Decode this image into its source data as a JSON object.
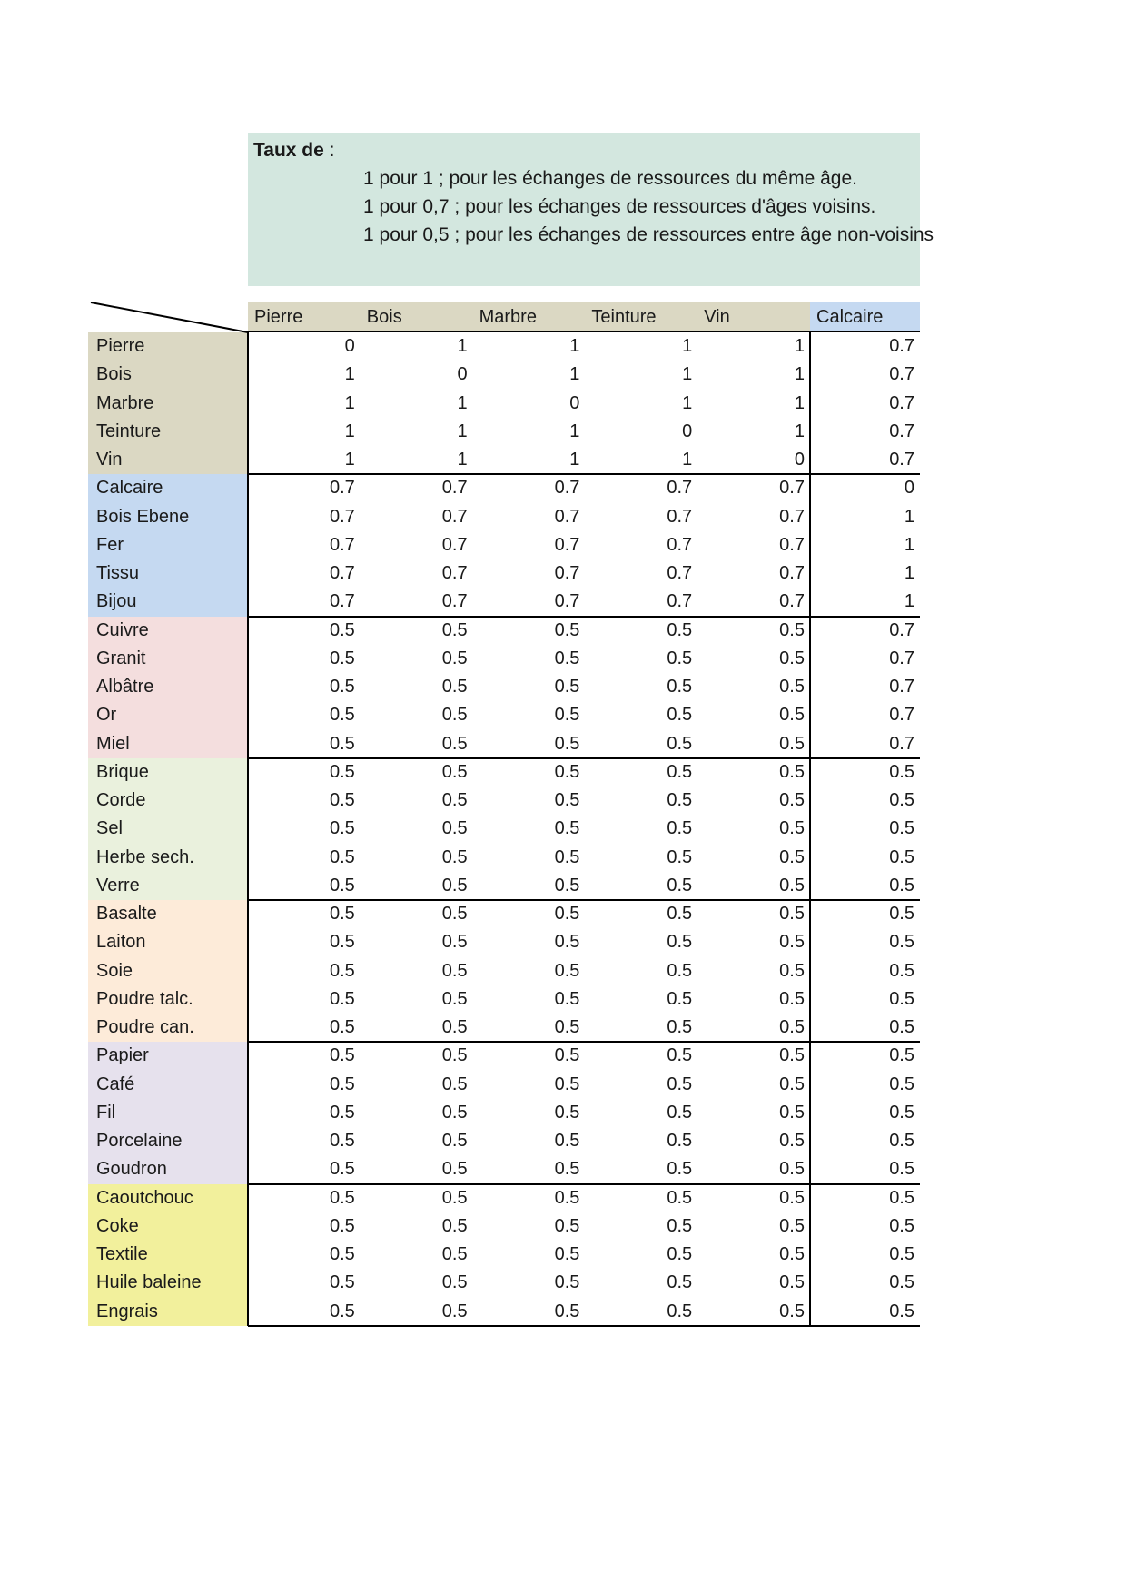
{
  "note": {
    "title": "Taux de",
    "title_suffix": " :",
    "bg_color": "#d3e7df",
    "lines": [
      "1 pour 1 ; pour les échanges de ressources du même âge.",
      "1 pour 0,7 ; pour les échanges de ressources d'âges voisins.",
      "1 pour 0,5 ; pour les échanges de ressources entre âge non-voisins"
    ]
  },
  "table": {
    "border_color": "#000000",
    "text_color": "#1a1a1a",
    "columns": [
      {
        "label": "Pierre",
        "fill": "#dbd8c3"
      },
      {
        "label": "Bois",
        "fill": "#dbd8c3"
      },
      {
        "label": "Marbre",
        "fill": "#dbd8c3"
      },
      {
        "label": "Teinture",
        "fill": "#dbd8c3"
      },
      {
        "label": "Vin",
        "fill": "#dbd8c3"
      },
      {
        "label": "Calcaire",
        "fill": "#c5d9f1"
      }
    ],
    "groups": [
      {
        "color": "#dbd8c3",
        "rows": [
          {
            "label": "Pierre",
            "values": [
              "0",
              "1",
              "1",
              "1",
              "1",
              "0.7"
            ]
          },
          {
            "label": "Bois",
            "values": [
              "1",
              "0",
              "1",
              "1",
              "1",
              "0.7"
            ]
          },
          {
            "label": "Marbre",
            "values": [
              "1",
              "1",
              "0",
              "1",
              "1",
              "0.7"
            ]
          },
          {
            "label": "Teinture",
            "values": [
              "1",
              "1",
              "1",
              "0",
              "1",
              "0.7"
            ]
          },
          {
            "label": "Vin",
            "values": [
              "1",
              "1",
              "1",
              "1",
              "0",
              "0.7"
            ]
          }
        ]
      },
      {
        "color": "#c5d9f1",
        "rows": [
          {
            "label": "Calcaire",
            "values": [
              "0.7",
              "0.7",
              "0.7",
              "0.7",
              "0.7",
              "0"
            ]
          },
          {
            "label": "Bois Ebene",
            "values": [
              "0.7",
              "0.7",
              "0.7",
              "0.7",
              "0.7",
              "1"
            ]
          },
          {
            "label": "Fer",
            "values": [
              "0.7",
              "0.7",
              "0.7",
              "0.7",
              "0.7",
              "1"
            ]
          },
          {
            "label": "Tissu",
            "values": [
              "0.7",
              "0.7",
              "0.7",
              "0.7",
              "0.7",
              "1"
            ]
          },
          {
            "label": "Bijou",
            "values": [
              "0.7",
              "0.7",
              "0.7",
              "0.7",
              "0.7",
              "1"
            ]
          }
        ]
      },
      {
        "color": "#f4dede",
        "rows": [
          {
            "label": "Cuivre",
            "values": [
              "0.5",
              "0.5",
              "0.5",
              "0.5",
              "0.5",
              "0.7"
            ]
          },
          {
            "label": "Granit",
            "values": [
              "0.5",
              "0.5",
              "0.5",
              "0.5",
              "0.5",
              "0.7"
            ]
          },
          {
            "label": "Albâtre",
            "values": [
              "0.5",
              "0.5",
              "0.5",
              "0.5",
              "0.5",
              "0.7"
            ]
          },
          {
            "label": "Or",
            "values": [
              "0.5",
              "0.5",
              "0.5",
              "0.5",
              "0.5",
              "0.7"
            ]
          },
          {
            "label": "Miel",
            "values": [
              "0.5",
              "0.5",
              "0.5",
              "0.5",
              "0.5",
              "0.7"
            ]
          }
        ]
      },
      {
        "color": "#eaf1dd",
        "rows": [
          {
            "label": "Brique",
            "values": [
              "0.5",
              "0.5",
              "0.5",
              "0.5",
              "0.5",
              "0.5"
            ]
          },
          {
            "label": "Corde",
            "values": [
              "0.5",
              "0.5",
              "0.5",
              "0.5",
              "0.5",
              "0.5"
            ]
          },
          {
            "label": "Sel",
            "values": [
              "0.5",
              "0.5",
              "0.5",
              "0.5",
              "0.5",
              "0.5"
            ]
          },
          {
            "label": "Herbe sech.",
            "values": [
              "0.5",
              "0.5",
              "0.5",
              "0.5",
              "0.5",
              "0.5"
            ]
          },
          {
            "label": "Verre",
            "values": [
              "0.5",
              "0.5",
              "0.5",
              "0.5",
              "0.5",
              "0.5"
            ]
          }
        ]
      },
      {
        "color": "#fdebd9",
        "rows": [
          {
            "label": "Basalte",
            "values": [
              "0.5",
              "0.5",
              "0.5",
              "0.5",
              "0.5",
              "0.5"
            ]
          },
          {
            "label": "Laiton",
            "values": [
              "0.5",
              "0.5",
              "0.5",
              "0.5",
              "0.5",
              "0.5"
            ]
          },
          {
            "label": "Soie",
            "values": [
              "0.5",
              "0.5",
              "0.5",
              "0.5",
              "0.5",
              "0.5"
            ]
          },
          {
            "label": "Poudre talc.",
            "values": [
              "0.5",
              "0.5",
              "0.5",
              "0.5",
              "0.5",
              "0.5"
            ]
          },
          {
            "label": "Poudre can.",
            "values": [
              "0.5",
              "0.5",
              "0.5",
              "0.5",
              "0.5",
              "0.5"
            ]
          }
        ]
      },
      {
        "color": "#e6e1ed",
        "rows": [
          {
            "label": "Papier",
            "values": [
              "0.5",
              "0.5",
              "0.5",
              "0.5",
              "0.5",
              "0.5"
            ]
          },
          {
            "label": "Café",
            "values": [
              "0.5",
              "0.5",
              "0.5",
              "0.5",
              "0.5",
              "0.5"
            ]
          },
          {
            "label": "Fil",
            "values": [
              "0.5",
              "0.5",
              "0.5",
              "0.5",
              "0.5",
              "0.5"
            ]
          },
          {
            "label": "Porcelaine",
            "values": [
              "0.5",
              "0.5",
              "0.5",
              "0.5",
              "0.5",
              "0.5"
            ]
          },
          {
            "label": "Goudron",
            "values": [
              "0.5",
              "0.5",
              "0.5",
              "0.5",
              "0.5",
              "0.5"
            ]
          }
        ]
      },
      {
        "color": "#f2f09c",
        "rows": [
          {
            "label": "Caoutchouc",
            "values": [
              "0.5",
              "0.5",
              "0.5",
              "0.5",
              "0.5",
              "0.5"
            ]
          },
          {
            "label": "Coke",
            "values": [
              "0.5",
              "0.5",
              "0.5",
              "0.5",
              "0.5",
              "0.5"
            ]
          },
          {
            "label": "Textile",
            "values": [
              "0.5",
              "0.5",
              "0.5",
              "0.5",
              "0.5",
              "0.5"
            ]
          },
          {
            "label": "Huile baleine",
            "values": [
              "0.5",
              "0.5",
              "0.5",
              "0.5",
              "0.5",
              "0.5"
            ]
          },
          {
            "label": "Engrais",
            "values": [
              "0.5",
              "0.5",
              "0.5",
              "0.5",
              "0.5",
              "0.5"
            ]
          }
        ]
      }
    ]
  }
}
